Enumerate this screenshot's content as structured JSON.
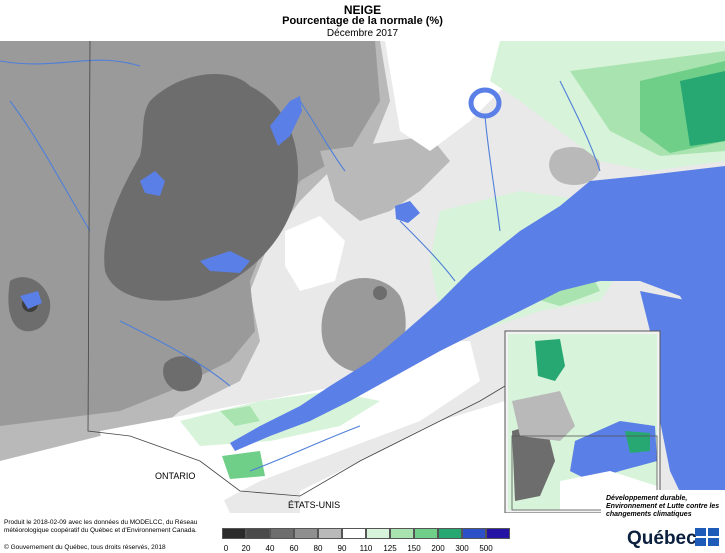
{
  "header": {
    "title": "NEIGE",
    "subtitle": "Pourcentage de la normale (%)",
    "date": "Décembre 2017"
  },
  "map": {
    "labels": {
      "ontario": "ONTARIO",
      "usa": "ÉTATS-UNIS"
    }
  },
  "legend": {
    "ticks": [
      "0",
      "20",
      "40",
      "60",
      "80",
      "90",
      "110",
      "125",
      "150",
      "200",
      "300",
      "500"
    ],
    "colors": [
      "#2b2b2b",
      "#4a4a4a",
      "#6d6d6d",
      "#8f8f8f",
      "#b9b9b9",
      "#ffffff",
      "#d7f3d9",
      "#a9e3b0",
      "#6fce88",
      "#27a873",
      "#2d4fc7",
      "#2513a6"
    ]
  },
  "footer": {
    "credits": "Produit le 2018-02-09 avec les données du MODELCC, du Réseau météorologique coopératif du Québec et d'Environnement Canada.",
    "copyright": "© Gouvernement du Québec, tous droits réservés, 2018"
  },
  "branding": {
    "ministry": "Développement durable, Environnement et Lutte contre les changements climatiques",
    "name": "Québec"
  },
  "colors": {
    "water": "#5a7fe6",
    "land_other": "#ffffff",
    "river": "#4f7fd9"
  }
}
